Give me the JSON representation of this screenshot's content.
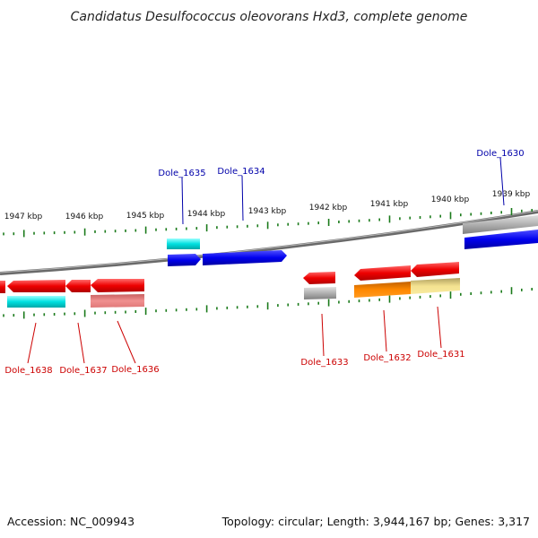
{
  "title": "Candidatus Desulfococcus oleovorans Hxd3, complete genome",
  "footer": {
    "accession": "Accession: NC_009943",
    "summary": "Topology: circular; Length: 3,944,167 bp; Genes: 3,317"
  },
  "colors": {
    "label_top": "#0000aa",
    "label_bottom": "#cc0000",
    "tick": "#1a7a1a",
    "backbone": "#808080"
  },
  "ticks": [
    {
      "label": "1947 kbp"
    },
    {
      "label": "1946 kbp"
    },
    {
      "label": "1945 kbp"
    },
    {
      "label": "1944 kbp"
    },
    {
      "label": "1943 kbp"
    },
    {
      "label": "1942 kbp"
    },
    {
      "label": "1941 kbp"
    },
    {
      "label": "1940 kbp"
    },
    {
      "label": "1939 kbp"
    }
  ],
  "genes_top": [
    {
      "label": "Dole_1635",
      "color": "#00dddd"
    },
    {
      "label": "Dole_1634",
      "color": "#0000ee"
    },
    {
      "label": "Dole_1630",
      "color": "#0000ee"
    }
  ],
  "genes_bottom": [
    {
      "label": "Dole_1638",
      "color": "#00cccc"
    },
    {
      "label": "Dole_1637",
      "color": "#ee0000"
    },
    {
      "label": "Dole_1636",
      "color": "#e88080"
    },
    {
      "label": "Dole_1633",
      "color": "#aaaaaa"
    },
    {
      "label": "Dole_1632",
      "color": "#ff8800"
    },
    {
      "label": "Dole_1631",
      "color": "#f2e08a"
    }
  ]
}
